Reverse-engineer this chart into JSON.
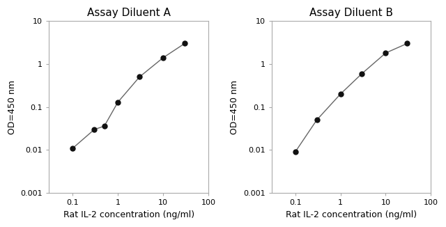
{
  "panel_A": {
    "title": "Assay Diluent A",
    "x": [
      0.1,
      0.3,
      0.5,
      1.0,
      3.0,
      10.0,
      30.0
    ],
    "y": [
      0.011,
      0.03,
      0.036,
      0.13,
      0.5,
      1.4,
      3.0
    ]
  },
  "panel_B": {
    "title": "Assay Diluent B",
    "x": [
      0.1,
      0.3,
      1.0,
      3.0,
      10.0,
      30.0
    ],
    "y": [
      0.009,
      0.05,
      0.2,
      0.6,
      1.8,
      3.0
    ]
  },
  "xlabel": "Rat IL-2 concentration (ng/ml)",
  "ylabel": "OD=450 nm",
  "xlim": [
    0.03,
    100
  ],
  "ylim": [
    0.001,
    10
  ],
  "xticks": [
    0.1,
    1,
    10,
    100
  ],
  "xtick_labels": [
    "0.1",
    "1",
    "10",
    "100"
  ],
  "yticks": [
    0.001,
    0.01,
    0.1,
    1,
    10
  ],
  "ytick_labels": [
    "0.001",
    "0.01",
    "0.1",
    "1",
    "10"
  ],
  "line_color": "#666666",
  "marker_color": "#111111",
  "marker_size": 5,
  "title_fontsize": 11,
  "label_fontsize": 9,
  "tick_fontsize": 8,
  "spine_color": "#aaaaaa",
  "background_color": "#ffffff"
}
